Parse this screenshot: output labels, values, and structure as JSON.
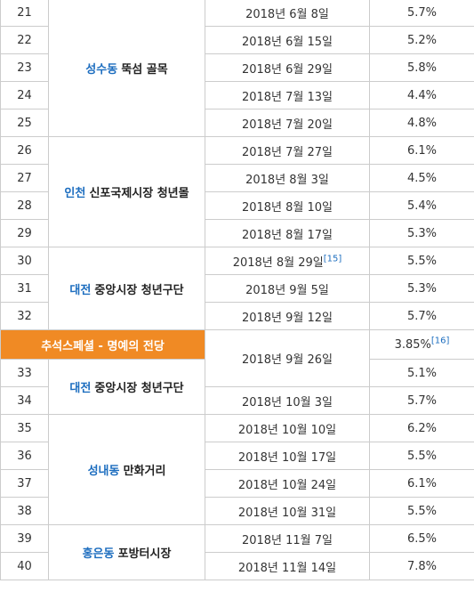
{
  "rows": [
    {
      "ep": "21",
      "date": "2018년 6월 8일",
      "rating": "5.7%"
    },
    {
      "ep": "22",
      "date": "2018년 6월 15일",
      "rating": "5.2%"
    },
    {
      "ep": "23",
      "date": "2018년 6월 29일",
      "rating": "5.8%"
    },
    {
      "ep": "24",
      "date": "2018년 7월 13일",
      "rating": "4.4%"
    },
    {
      "ep": "25",
      "date": "2018년 7월 20일",
      "rating": "4.8%"
    },
    {
      "ep": "26",
      "date": "2018년 7월 27일",
      "rating": "6.1%"
    },
    {
      "ep": "27",
      "date": "2018년 8월 3일",
      "rating": "4.5%"
    },
    {
      "ep": "28",
      "date": "2018년 8월 10일",
      "rating": "5.4%"
    },
    {
      "ep": "29",
      "date": "2018년 8월 17일",
      "rating": "5.3%"
    },
    {
      "ep": "30",
      "date": "2018년 8월 29일",
      "date_ref": "[15]",
      "rating": "5.5%"
    },
    {
      "ep": "31",
      "date": "2018년 9월 5일",
      "rating": "5.3%"
    },
    {
      "ep": "32",
      "date": "2018년 9월 12일",
      "rating": "5.7%"
    },
    {
      "ep": "33",
      "date": "2018년 9월 26일",
      "rating": "5.1%"
    },
    {
      "ep": "34",
      "date": "2018년 10월 3일",
      "rating": "5.7%"
    },
    {
      "ep": "35",
      "date": "2018년 10월 10일",
      "rating": "6.2%"
    },
    {
      "ep": "36",
      "date": "2018년 10월 17일",
      "rating": "5.5%"
    },
    {
      "ep": "37",
      "date": "2018년 10월 24일",
      "rating": "6.1%"
    },
    {
      "ep": "38",
      "date": "2018년 10월 31일",
      "rating": "5.5%"
    },
    {
      "ep": "39",
      "date": "2018년 11월 7일",
      "rating": "6.5%"
    },
    {
      "ep": "40",
      "date": "2018년 11월 14일",
      "rating": "7.8%"
    }
  ],
  "locations": {
    "seongsu": {
      "region": "성수동",
      "place": "뚝섬 골목"
    },
    "incheon": {
      "region": "인천",
      "place": "신포국제시장 청년몰"
    },
    "daejeon1": {
      "region": "대전",
      "place": "중앙시장 청년구단"
    },
    "daejeon2": {
      "region": "대전",
      "place": "중앙시장 청년구단"
    },
    "seongnae": {
      "region": "성내동",
      "place": "만화거리"
    },
    "hongeun": {
      "region": "홍은동",
      "place": "포방터시장"
    }
  },
  "special": {
    "title": "추석스페셜 - 명예의 전당",
    "rating": "3.85%",
    "ref": "[16]"
  },
  "colors": {
    "special_bg": "#f08a24",
    "region_text": "#1c6dbf",
    "border": "#cccccc"
  }
}
